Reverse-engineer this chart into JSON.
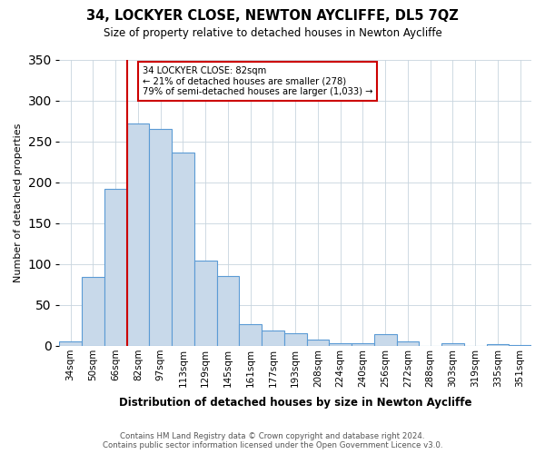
{
  "title": "34, LOCKYER CLOSE, NEWTON AYCLIFFE, DL5 7QZ",
  "subtitle": "Size of property relative to detached houses in Newton Aycliffe",
  "xlabel": "Distribution of detached houses by size in Newton Aycliffe",
  "ylabel": "Number of detached properties",
  "footer_line1": "Contains HM Land Registry data © Crown copyright and database right 2024.",
  "footer_line2": "Contains public sector information licensed under the Open Government Licence v3.0.",
  "bar_labels": [
    "34sqm",
    "50sqm",
    "66sqm",
    "82sqm",
    "97sqm",
    "113sqm",
    "129sqm",
    "145sqm",
    "161sqm",
    "177sqm",
    "193sqm",
    "208sqm",
    "224sqm",
    "240sqm",
    "256sqm",
    "272sqm",
    "288sqm",
    "303sqm",
    "319sqm",
    "335sqm",
    "351sqm"
  ],
  "bar_values": [
    6,
    84,
    192,
    272,
    265,
    236,
    104,
    85,
    27,
    19,
    15,
    8,
    3,
    3,
    14,
    5,
    0,
    3,
    0,
    2,
    1
  ],
  "bar_color": "#c8d9ea",
  "bar_edge_color": "#5b9bd5",
  "ylim": [
    0,
    350
  ],
  "yticks": [
    0,
    50,
    100,
    150,
    200,
    250,
    300,
    350
  ],
  "annotation_title": "34 LOCKYER CLOSE: 82sqm",
  "annotation_line1": "← 21% of detached houses are smaller (278)",
  "annotation_line2": "79% of semi-detached houses are larger (1,033) →",
  "property_bar_index": 3,
  "vline_color": "#cc0000",
  "annotation_box_edge_color": "#cc0000"
}
